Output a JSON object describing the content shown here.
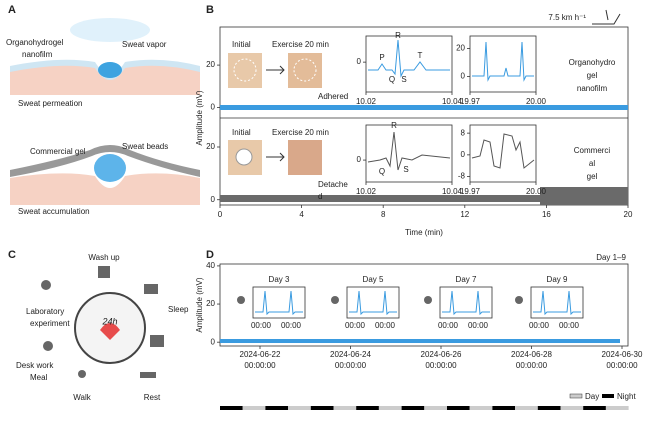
{
  "panel_a": {
    "label": "A",
    "top_labels": [
      "Organohydrogel",
      "nanofilm",
      "Sweat vapor",
      "Sweat permeation"
    ],
    "bottom_labels": [
      "Commercial gel",
      "Sweat beads",
      "Sweat accumulation"
    ]
  },
  "panel_b": {
    "label": "B",
    "speed": "7.5 km h⁻¹",
    "ylabel": "Amplitude (mV)",
    "xlabel": "Time (min)",
    "xlim": [
      0,
      20
    ],
    "xticks": [
      0,
      4,
      8,
      12,
      16,
      20
    ],
    "top": {
      "ylim": [
        -5,
        38
      ],
      "yticks": [
        0,
        20
      ],
      "initial": "Initial",
      "exercise": "Exercise 20 min",
      "status": [
        "Adhered"
      ],
      "name": [
        "Organohydro",
        "gel",
        "nanofilm"
      ],
      "insets": [
        {
          "xlim": [
            10.02,
            10.04
          ],
          "xticks": [
            10.02,
            10.04
          ],
          "ylim": [
            -1.6,
            1.4
          ],
          "yticks": [
            0
          ],
          "peaks": [
            "P",
            "Q",
            "R",
            "S",
            "T"
          ]
        },
        {
          "xlim": [
            19.97,
            20
          ],
          "xticks": [
            19.97,
            {
              "value": 20,
              "label": "20.00"
            }
          ],
          "ylim": [
            -11,
            29
          ],
          "yticks": [
            0,
            20
          ]
        }
      ]
    },
    "bottom": {
      "ylim": [
        -2,
        31
      ],
      "yticks": [
        0,
        20
      ],
      "initial": "Initial",
      "exercise": "Exercise 20 min",
      "status": [
        "Detache",
        "d"
      ],
      "name": [
        "Commerci",
        "al",
        "gel"
      ],
      "insets": [
        {
          "xlim": [
            10.02,
            10.04
          ],
          "xticks": [
            10.02,
            10.04
          ],
          "ylim": [
            -1,
            1.6
          ],
          "yticks": [
            0
          ],
          "peaks": [
            "R",
            "Q",
            "S"
          ]
        },
        {
          "xlim": [
            19.97,
            20
          ],
          "xticks": [
            19.97,
            {
              "value": 20,
              "label": "20.00"
            }
          ],
          "ylim": [
            -10,
            11
          ],
          "yticks": [
            -8,
            0,
            8
          ]
        }
      ]
    }
  },
  "panel_c": {
    "label": "C",
    "activities": [
      "Wash up",
      "Sleep",
      "Laboratory",
      "experiment",
      "Desk work",
      "Meal",
      "Walk",
      "Rest"
    ],
    "center": "24h"
  },
  "panel_d": {
    "label": "D",
    "period": "Day 1–9",
    "ylabel": "Amplitude (mV)",
    "ylim": [
      -2,
      41
    ],
    "yticks": [
      0,
      20,
      40
    ],
    "xticks": [
      {
        "date": "2024-06-22",
        "time": "00:00:00"
      },
      {
        "date": "2024-06-24",
        "time": "00:00:00"
      },
      {
        "date": "2024-06-26",
        "time": "00:00:00"
      },
      {
        "date": "2024-06-28",
        "time": "00:00:00"
      },
      {
        "date": "2024-06-30",
        "time": "00:00:00"
      }
    ],
    "insets": [
      {
        "title": "Day 3",
        "xlabels": [
          "00:00",
          "00:00"
        ]
      },
      {
        "title": "Day 5",
        "xlabels": [
          "00:00",
          "00:00"
        ]
      },
      {
        "title": "Day 7",
        "xlabels": [
          "00:00",
          "00:00"
        ]
      },
      {
        "title": "Day 9",
        "xlabels": [
          "00:00",
          "00:00"
        ]
      }
    ],
    "legend": [
      "Day",
      "Night"
    ]
  }
}
